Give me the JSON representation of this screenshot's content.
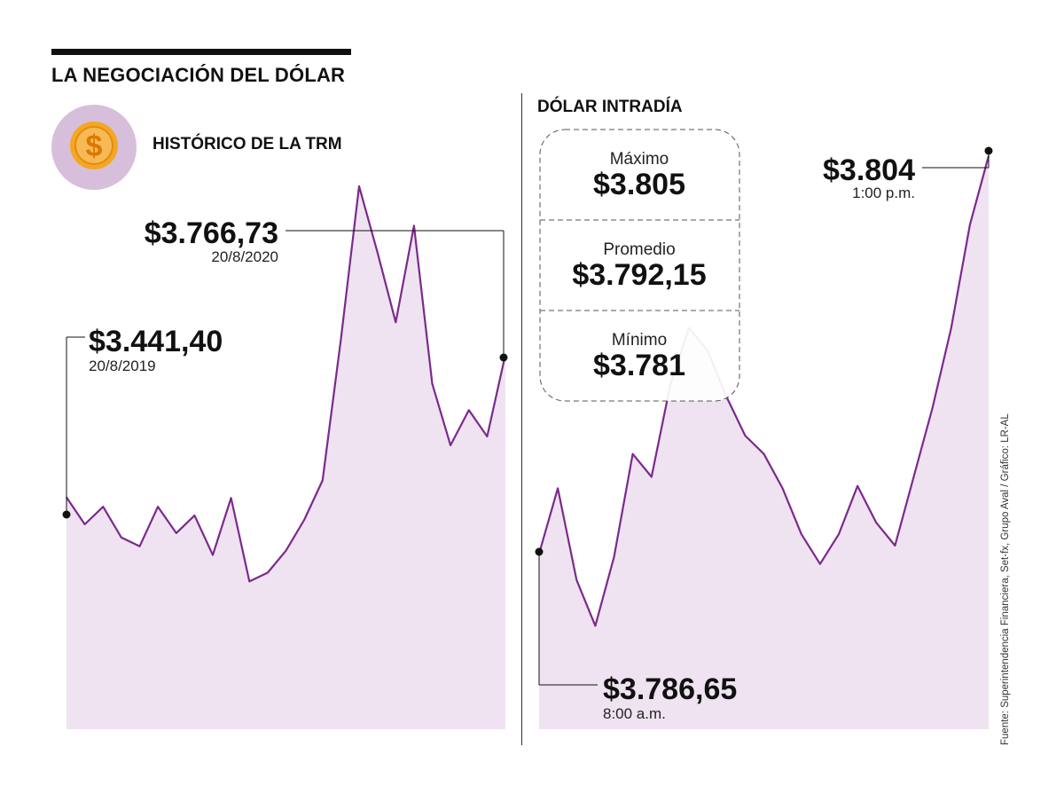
{
  "header": {
    "title": "LA NEGOCIACIÓN DEL DÓLAR"
  },
  "colors": {
    "line": "#7b2a8c",
    "area": "#efe3f1",
    "coin_bg": "#d7bfdc",
    "coin_gold": "#f5a623"
  },
  "icons": {
    "coin": "dollar-coin-icon"
  },
  "source": "Fuente: Superintendencia Financiera, Set-fx, Grupo Aval / Gráfico: LR-AL",
  "chart_data": [
    {
      "type": "area",
      "title": "HISTÓRICO DE LA TRM",
      "start": {
        "value": "$3.441,40",
        "date": "20/8/2019"
      },
      "end": {
        "value": "$3.766,73",
        "date": "20/8/2020"
      },
      "x": [
        "20/8/2019",
        "",
        "",
        "",
        "",
        "",
        "",
        "",
        "",
        "",
        "",
        "",
        "",
        "",
        "",
        "",
        "",
        "",
        "",
        "",
        "",
        "",
        "",
        "",
        "20/8/2020"
      ],
      "y_range": [
        3180,
        4180
      ],
      "values": [
        3441.4,
        3380,
        3420,
        3350,
        3330,
        3420,
        3360,
        3400,
        3310,
        3440,
        3250,
        3270,
        3320,
        3390,
        3480,
        3800,
        4150,
        4000,
        3840,
        4060,
        3700,
        3560,
        3640,
        3580,
        3766.73
      ]
    },
    {
      "type": "area",
      "title": "DÓLAR INTRADÍA",
      "stats": [
        {
          "label": "Máximo",
          "value": "$3.805"
        },
        {
          "label": "Promedio",
          "value": "$3.792,15"
        },
        {
          "label": "Mínimo",
          "value": "$3.781"
        }
      ],
      "open": {
        "value": "$3.786,65",
        "time": "8:00 a.m."
      },
      "close": {
        "value": "$3.804",
        "time": "1:00 p.m."
      },
      "x": [
        "8:00 a.m.",
        "",
        "",
        "",
        "",
        "",
        "",
        "",
        "",
        "",
        "",
        "",
        "",
        "",
        "",
        "",
        "",
        "",
        "",
        "",
        "",
        "",
        "",
        "",
        "1:00 p.m."
      ],
      "y_range": [
        3781,
        3805
      ],
      "values": [
        3786.65,
        3789.5,
        3785.5,
        3783.5,
        3786.5,
        3791,
        3790,
        3794,
        3796.5,
        3795.5,
        3793.5,
        3791.8,
        3791,
        3789.5,
        3787.5,
        3786.2,
        3787.5,
        3789.6,
        3788,
        3787,
        3790,
        3793,
        3796.5,
        3801,
        3804
      ]
    }
  ]
}
